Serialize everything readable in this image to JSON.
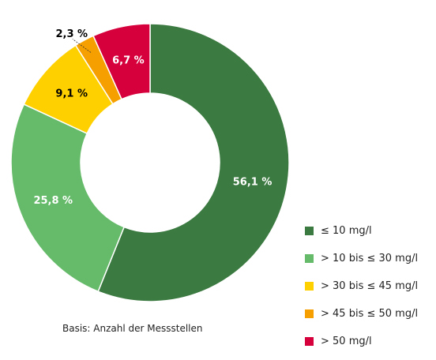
{
  "chart_data": {
    "type": "pie",
    "donut": true,
    "title": "",
    "categories": [
      "≤ 10 mg/l",
      "> 10 bis ≤ 30 mg/l",
      "> 30 bis ≤ 45 mg/l",
      "> 45 bis ≤ 50 mg/l",
      "> 50 mg/l"
    ],
    "values": [
      56.1,
      25.8,
      9.1,
      2.3,
      6.7
    ],
    "labels": [
      "56,1 %",
      "25,8 %",
      "9,1 %",
      "2,3 %",
      "6,7 %"
    ],
    "colors": [
      "#3b7a40",
      "#66bb6a",
      "#ffd000",
      "#f5a000",
      "#d5003c"
    ],
    "label_colors": [
      "#ffffff",
      "#ffffff",
      "#000000",
      "#000000",
      "#ffffff"
    ],
    "legend_position": "right-bottom"
  },
  "footnote": "Basis: Anzahl der Messstellen"
}
